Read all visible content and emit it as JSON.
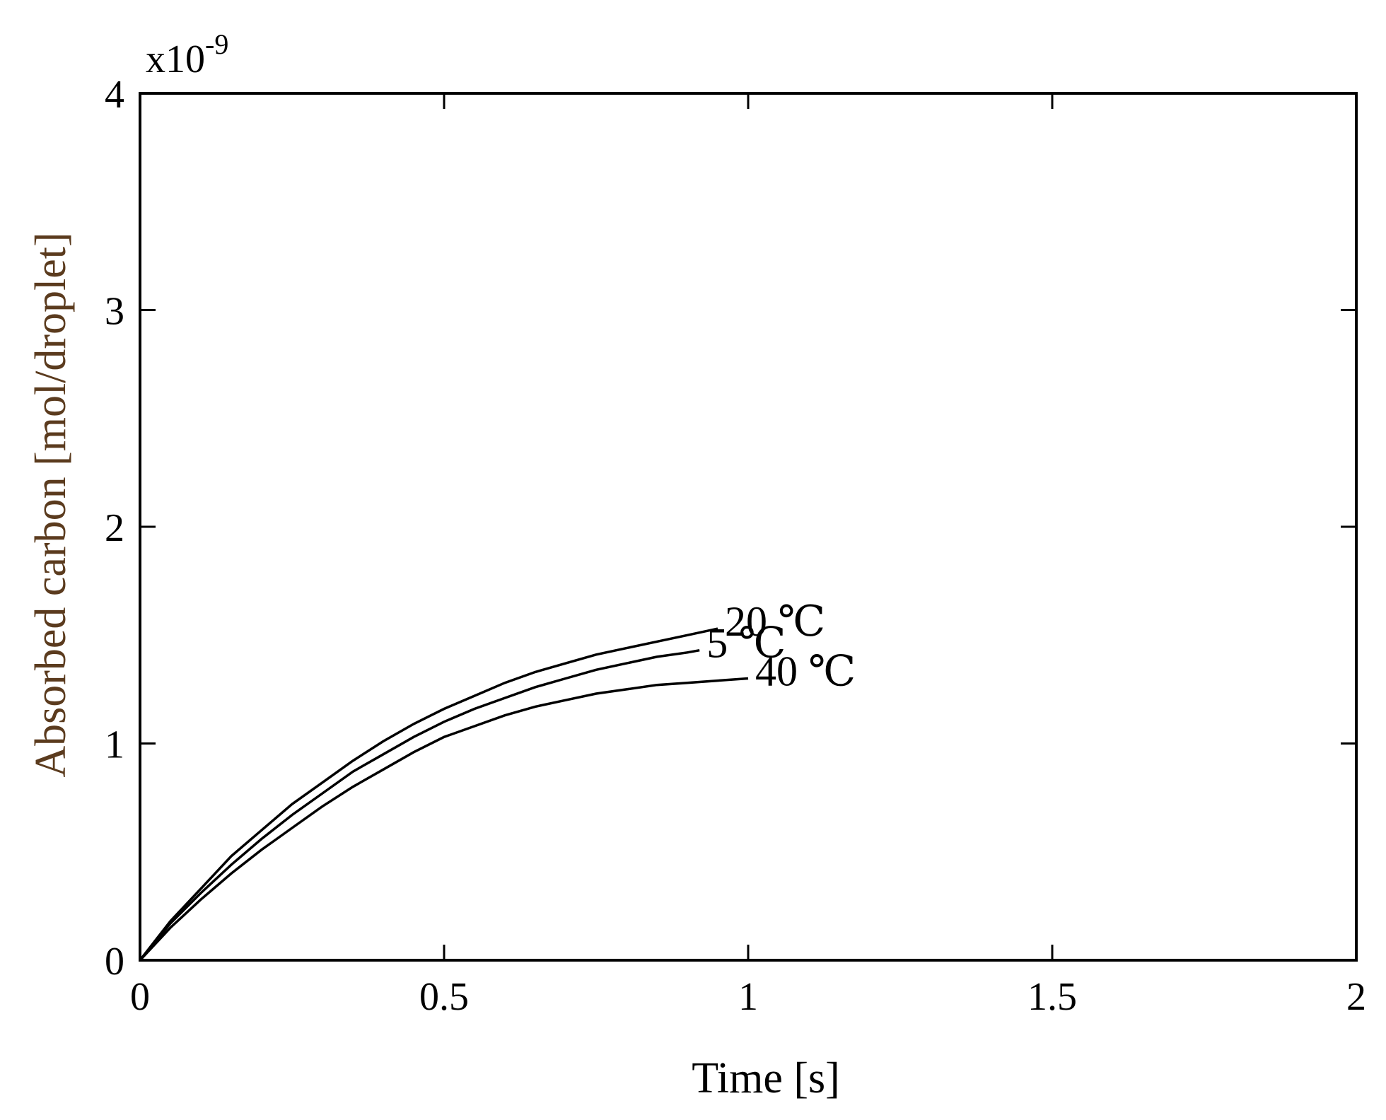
{
  "chart_data": {
    "type": "line",
    "title": "",
    "xlabel": "Time [s]",
    "ylabel": "Absorbed carbon [mol/droplet]",
    "xlim": [
      0,
      2
    ],
    "ylim": [
      0,
      4
    ],
    "y_multiplier": "x10",
    "y_multiplier_exponent": "-9",
    "x_ticks": [
      0,
      0.5,
      1,
      1.5,
      2
    ],
    "x_tick_labels": [
      "0",
      "0.5",
      "1",
      "1.5",
      "2"
    ],
    "y_ticks": [
      0,
      1,
      2,
      3,
      4
    ],
    "y_tick_labels": [
      "0",
      "1",
      "2",
      "3",
      "4"
    ],
    "grid": false,
    "series": [
      {
        "name": "20 ℃",
        "x": [
          0,
          0.05,
          0.1,
          0.15,
          0.2,
          0.25,
          0.3,
          0.35,
          0.4,
          0.45,
          0.5,
          0.55,
          0.6,
          0.65,
          0.7,
          0.75,
          0.8,
          0.85,
          0.9,
          0.95
        ],
        "values": [
          0,
          0.18,
          0.33,
          0.48,
          0.6,
          0.72,
          0.82,
          0.92,
          1.01,
          1.09,
          1.16,
          1.22,
          1.28,
          1.33,
          1.37,
          1.41,
          1.44,
          1.47,
          1.5,
          1.53
        ]
      },
      {
        "name": "5 ℃",
        "x": [
          0,
          0.05,
          0.1,
          0.15,
          0.2,
          0.25,
          0.3,
          0.35,
          0.4,
          0.45,
          0.5,
          0.55,
          0.6,
          0.65,
          0.7,
          0.75,
          0.8,
          0.85,
          0.9,
          0.92
        ],
        "values": [
          0,
          0.17,
          0.31,
          0.44,
          0.56,
          0.67,
          0.77,
          0.87,
          0.95,
          1.03,
          1.1,
          1.16,
          1.21,
          1.26,
          1.3,
          1.34,
          1.37,
          1.4,
          1.42,
          1.43
        ]
      },
      {
        "name": "40 ℃",
        "x": [
          0,
          0.05,
          0.1,
          0.15,
          0.2,
          0.25,
          0.3,
          0.35,
          0.4,
          0.45,
          0.5,
          0.55,
          0.6,
          0.65,
          0.7,
          0.75,
          0.8,
          0.85,
          0.9,
          0.95,
          1.0
        ],
        "values": [
          0,
          0.15,
          0.28,
          0.4,
          0.51,
          0.61,
          0.71,
          0.8,
          0.88,
          0.96,
          1.03,
          1.08,
          1.13,
          1.17,
          1.2,
          1.23,
          1.25,
          1.27,
          1.28,
          1.29,
          1.3
        ]
      }
    ]
  }
}
